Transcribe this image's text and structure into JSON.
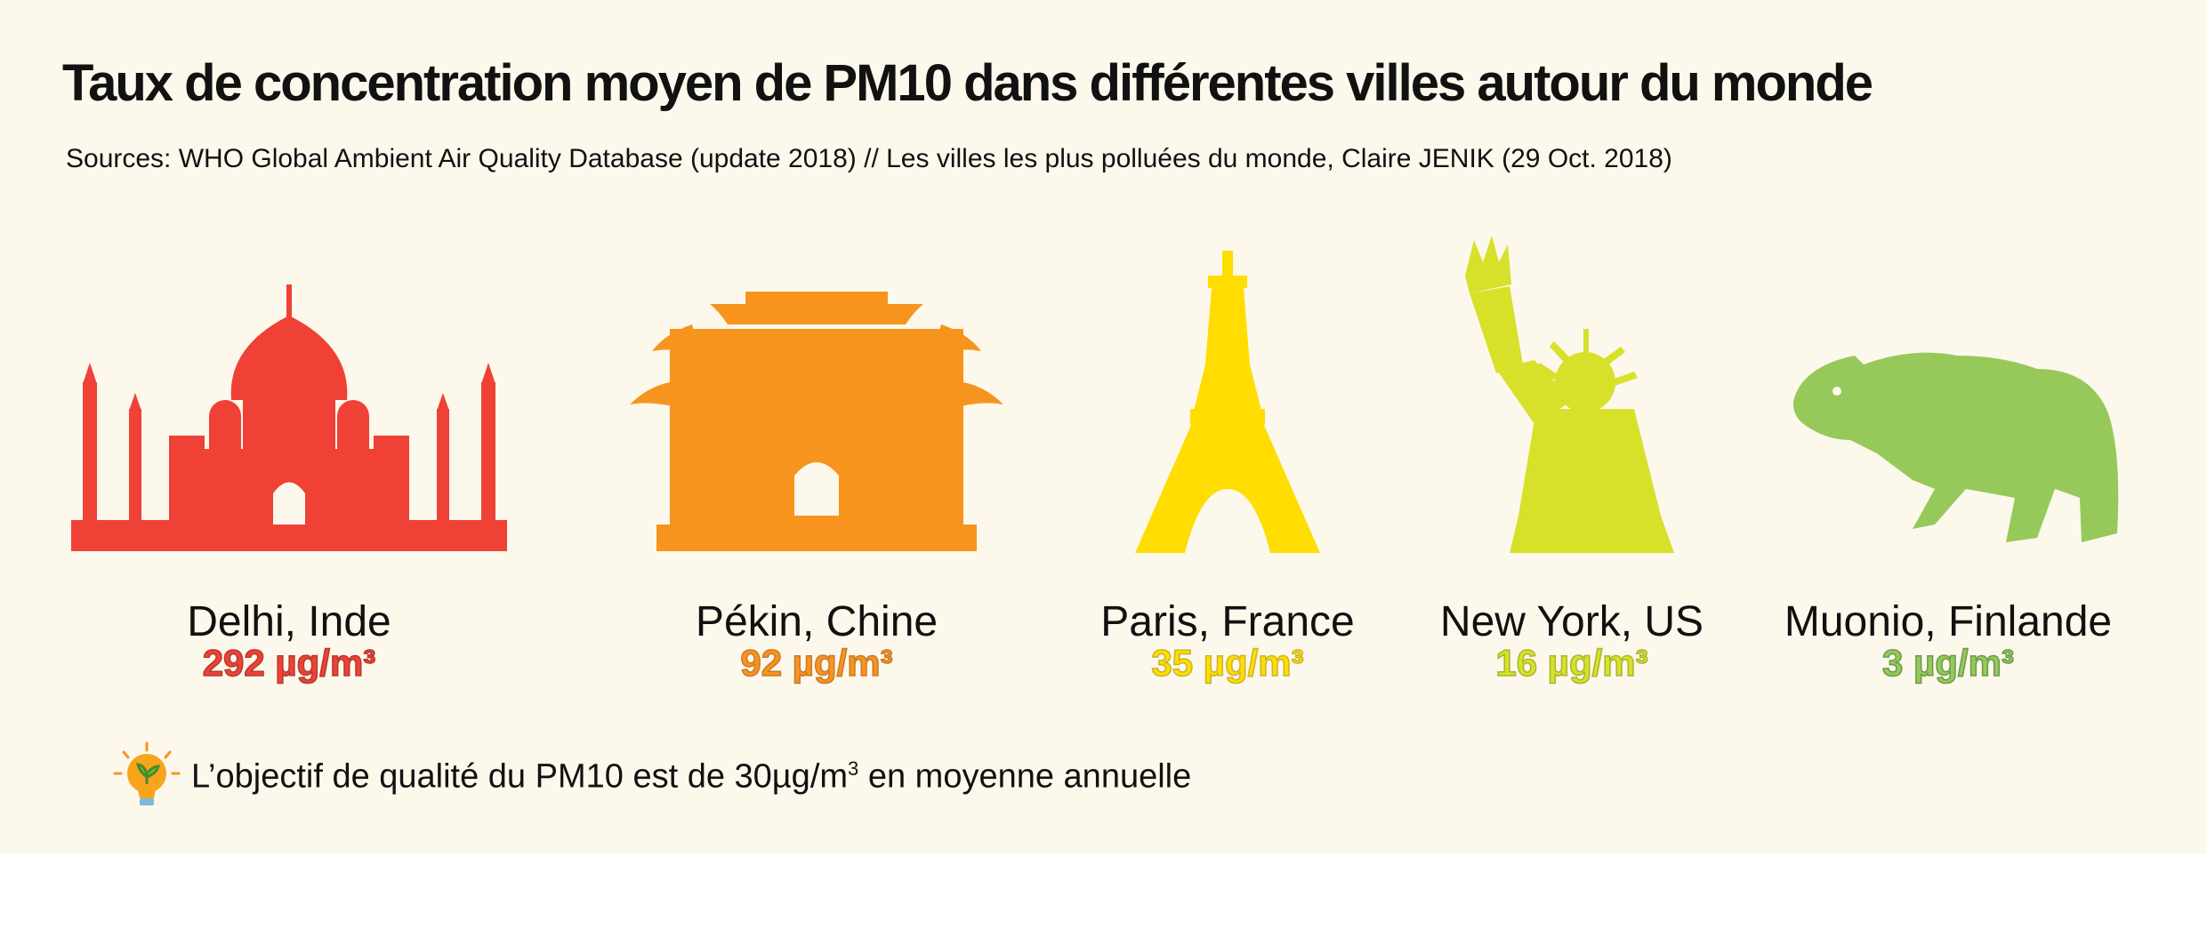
{
  "title": "Taux de concentration moyen de PM10 dans différentes villes autour du monde",
  "subtitle": "Sources: WHO Global Ambient Air Quality Database (update 2018) // Les villes les plus polluées du monde, Claire JENIK (29 Oct. 2018)",
  "chart_data": {
    "type": "bar",
    "categories": [
      "Delhi, Inde",
      "Pékin, Chine",
      "Paris, France",
      "New York, US",
      "Muonio, Finlande"
    ],
    "values": [
      292,
      92,
      35,
      16,
      3
    ],
    "value_labels": [
      "292 µg/m³",
      "92 µg/m³",
      "35 µg/m³",
      "16 µg/m³",
      "3 µg/m³"
    ],
    "unit": "µg/m³",
    "colors": [
      "#ef4136",
      "#f7941d",
      "#ffdd00",
      "#d7e12a",
      "#96c95a"
    ],
    "value_text_colors": [
      "#b43a2e",
      "#c77a2a",
      "#c9b52a",
      "#a8b62a",
      "#6a9b4a"
    ],
    "icons": [
      "taj-mahal-icon",
      "chinese-gate-icon",
      "eiffel-tower-icon",
      "statue-of-liberty-icon",
      "bear-icon"
    ]
  },
  "note": {
    "icon": "lightbulb-icon",
    "text_prefix": "L’objectif de qualité du PM10 est de 30µg/m",
    "superscript": "3",
    "text_suffix": " en moyenne annuelle"
  }
}
